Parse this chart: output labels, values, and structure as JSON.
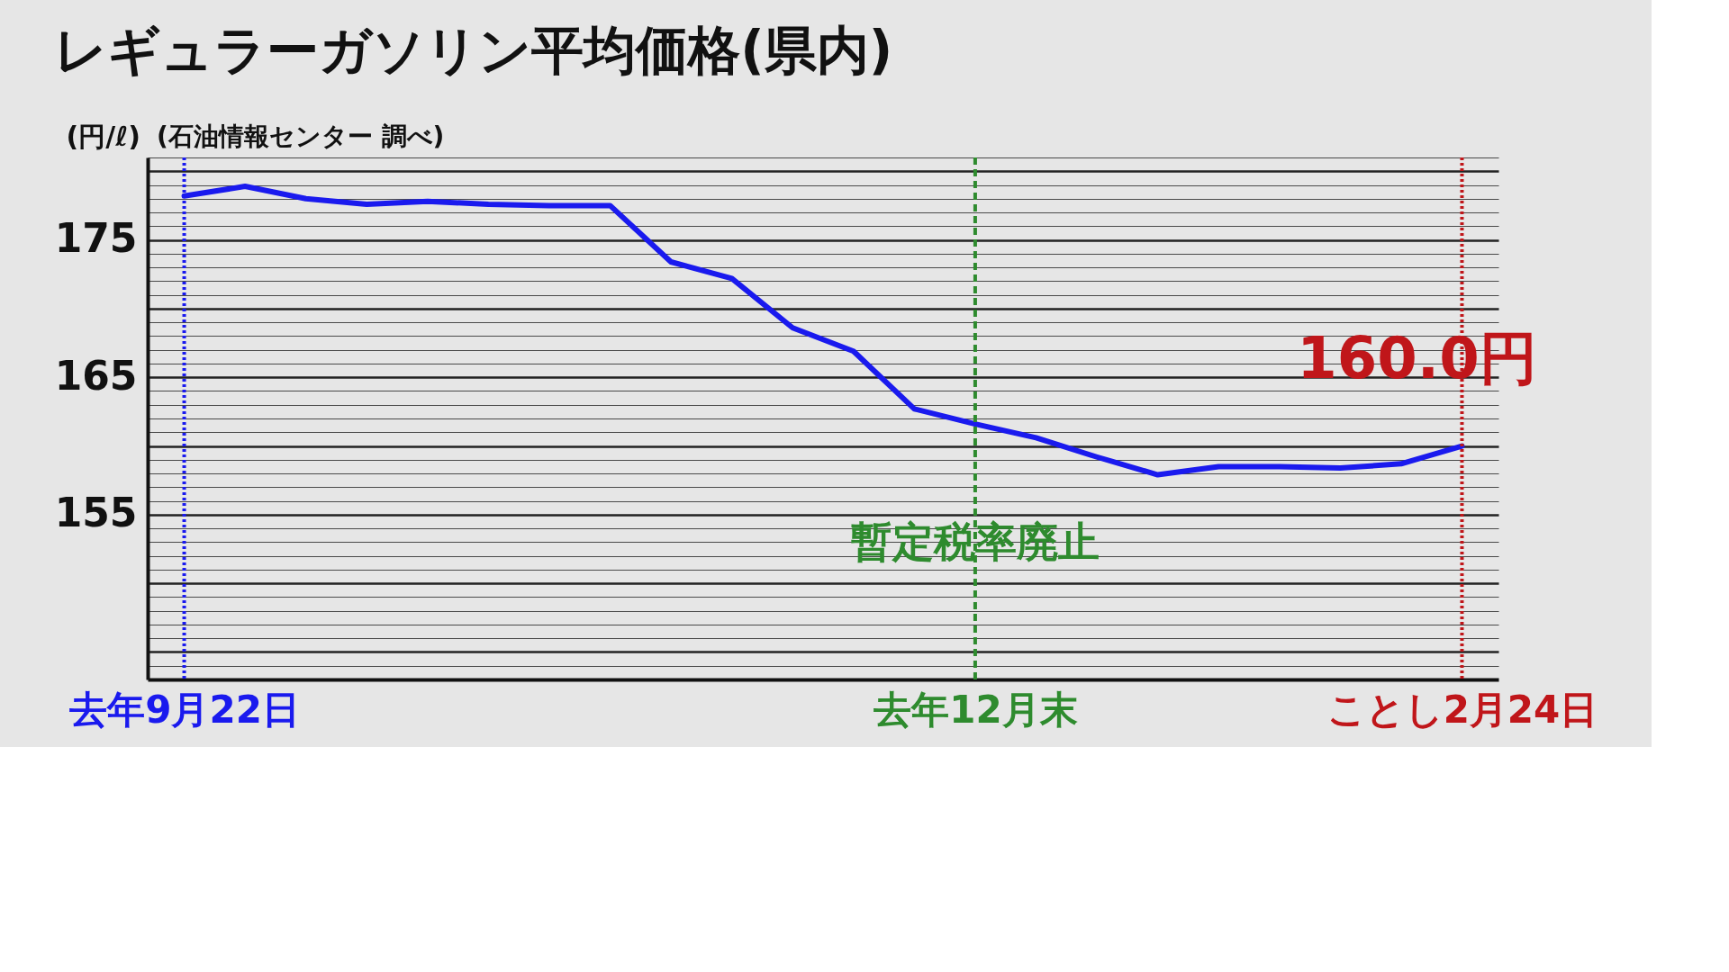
{
  "chart_data": {
    "type": "line",
    "title": "レギュラーガソリン平均価格(県内)",
    "subtitle": "(石油情報センター 調べ)",
    "ylabel": "(円/ℓ)",
    "categories": [
      "去年9月22日",
      null,
      null,
      null,
      null,
      null,
      null,
      null,
      null,
      null,
      null,
      null,
      null,
      "去年12月末",
      null,
      null,
      null,
      null,
      null,
      null,
      null,
      "ことし2月24日"
    ],
    "series": [
      {
        "color": "#1a1aee",
        "values": [
          178.2,
          178.9,
          178.0,
          177.6,
          177.8,
          177.6,
          177.5,
          177.5,
          173.4,
          172.2,
          168.6,
          166.9,
          162.7,
          161.6,
          160.6,
          159.2,
          157.9,
          158.5,
          158.5,
          158.4,
          158.7,
          160.0
        ]
      }
    ],
    "ylim": [
      143,
      181
    ],
    "yticks": [
      {
        "value": 144,
        "label": null
      },
      {
        "value": 145,
        "label": null
      },
      {
        "value": 146,
        "label": null
      },
      {
        "value": 147,
        "label": null
      },
      {
        "value": 148,
        "label": null
      },
      {
        "value": 149,
        "label": null
      },
      {
        "value": 150,
        "label": null
      },
      {
        "value": 151,
        "label": null
      },
      {
        "value": 152,
        "label": null
      },
      {
        "value": 153,
        "label": null
      },
      {
        "value": 154,
        "label": null
      },
      155,
      {
        "value": 156,
        "label": null
      },
      {
        "value": 157,
        "label": null
      },
      {
        "value": 158,
        "label": null
      },
      {
        "value": 159,
        "label": null
      },
      {
        "value": 160,
        "label": null
      },
      {
        "value": 161,
        "label": null
      },
      {
        "value": 162,
        "label": null
      },
      {
        "value": 163,
        "label": null
      },
      {
        "value": 164,
        "label": null
      },
      165,
      {
        "value": 166,
        "label": null
      },
      {
        "value": 167,
        "label": null
      },
      {
        "value": 168,
        "label": null
      },
      {
        "value": 169,
        "label": null
      },
      {
        "value": 170,
        "label": null
      },
      {
        "value": 171,
        "label": null
      },
      {
        "value": 172,
        "label": null
      },
      {
        "value": 173,
        "label": null
      },
      {
        "value": 174,
        "label": null
      },
      175,
      {
        "value": 176,
        "label": null
      },
      {
        "value": 177,
        "label": null
      },
      {
        "value": 178,
        "label": null
      },
      {
        "value": 179,
        "label": null
      },
      {
        "value": 180,
        "label": null
      },
      {
        "value": 181,
        "label": null
      }
    ],
    "ref_lines": [
      {
        "axis": "x",
        "value": "去年9月22日",
        "color": "#1a1aee",
        "line_style": "dotted"
      },
      {
        "axis": "x",
        "value": "去年12月末",
        "label": "暫定税率廃止",
        "color": "#2e8b2e",
        "line_style": "dashed"
      },
      {
        "axis": "x",
        "value": "ことし2月24日",
        "color": "#c0161a",
        "line_style": "dotted"
      }
    ],
    "annotations": [
      {
        "text": "160.0円",
        "x": "ことし2月24日",
        "y": 160.0
      }
    ],
    "grid": "y",
    "legend": false,
    "marker": "none",
    "line_style": "solid"
  }
}
